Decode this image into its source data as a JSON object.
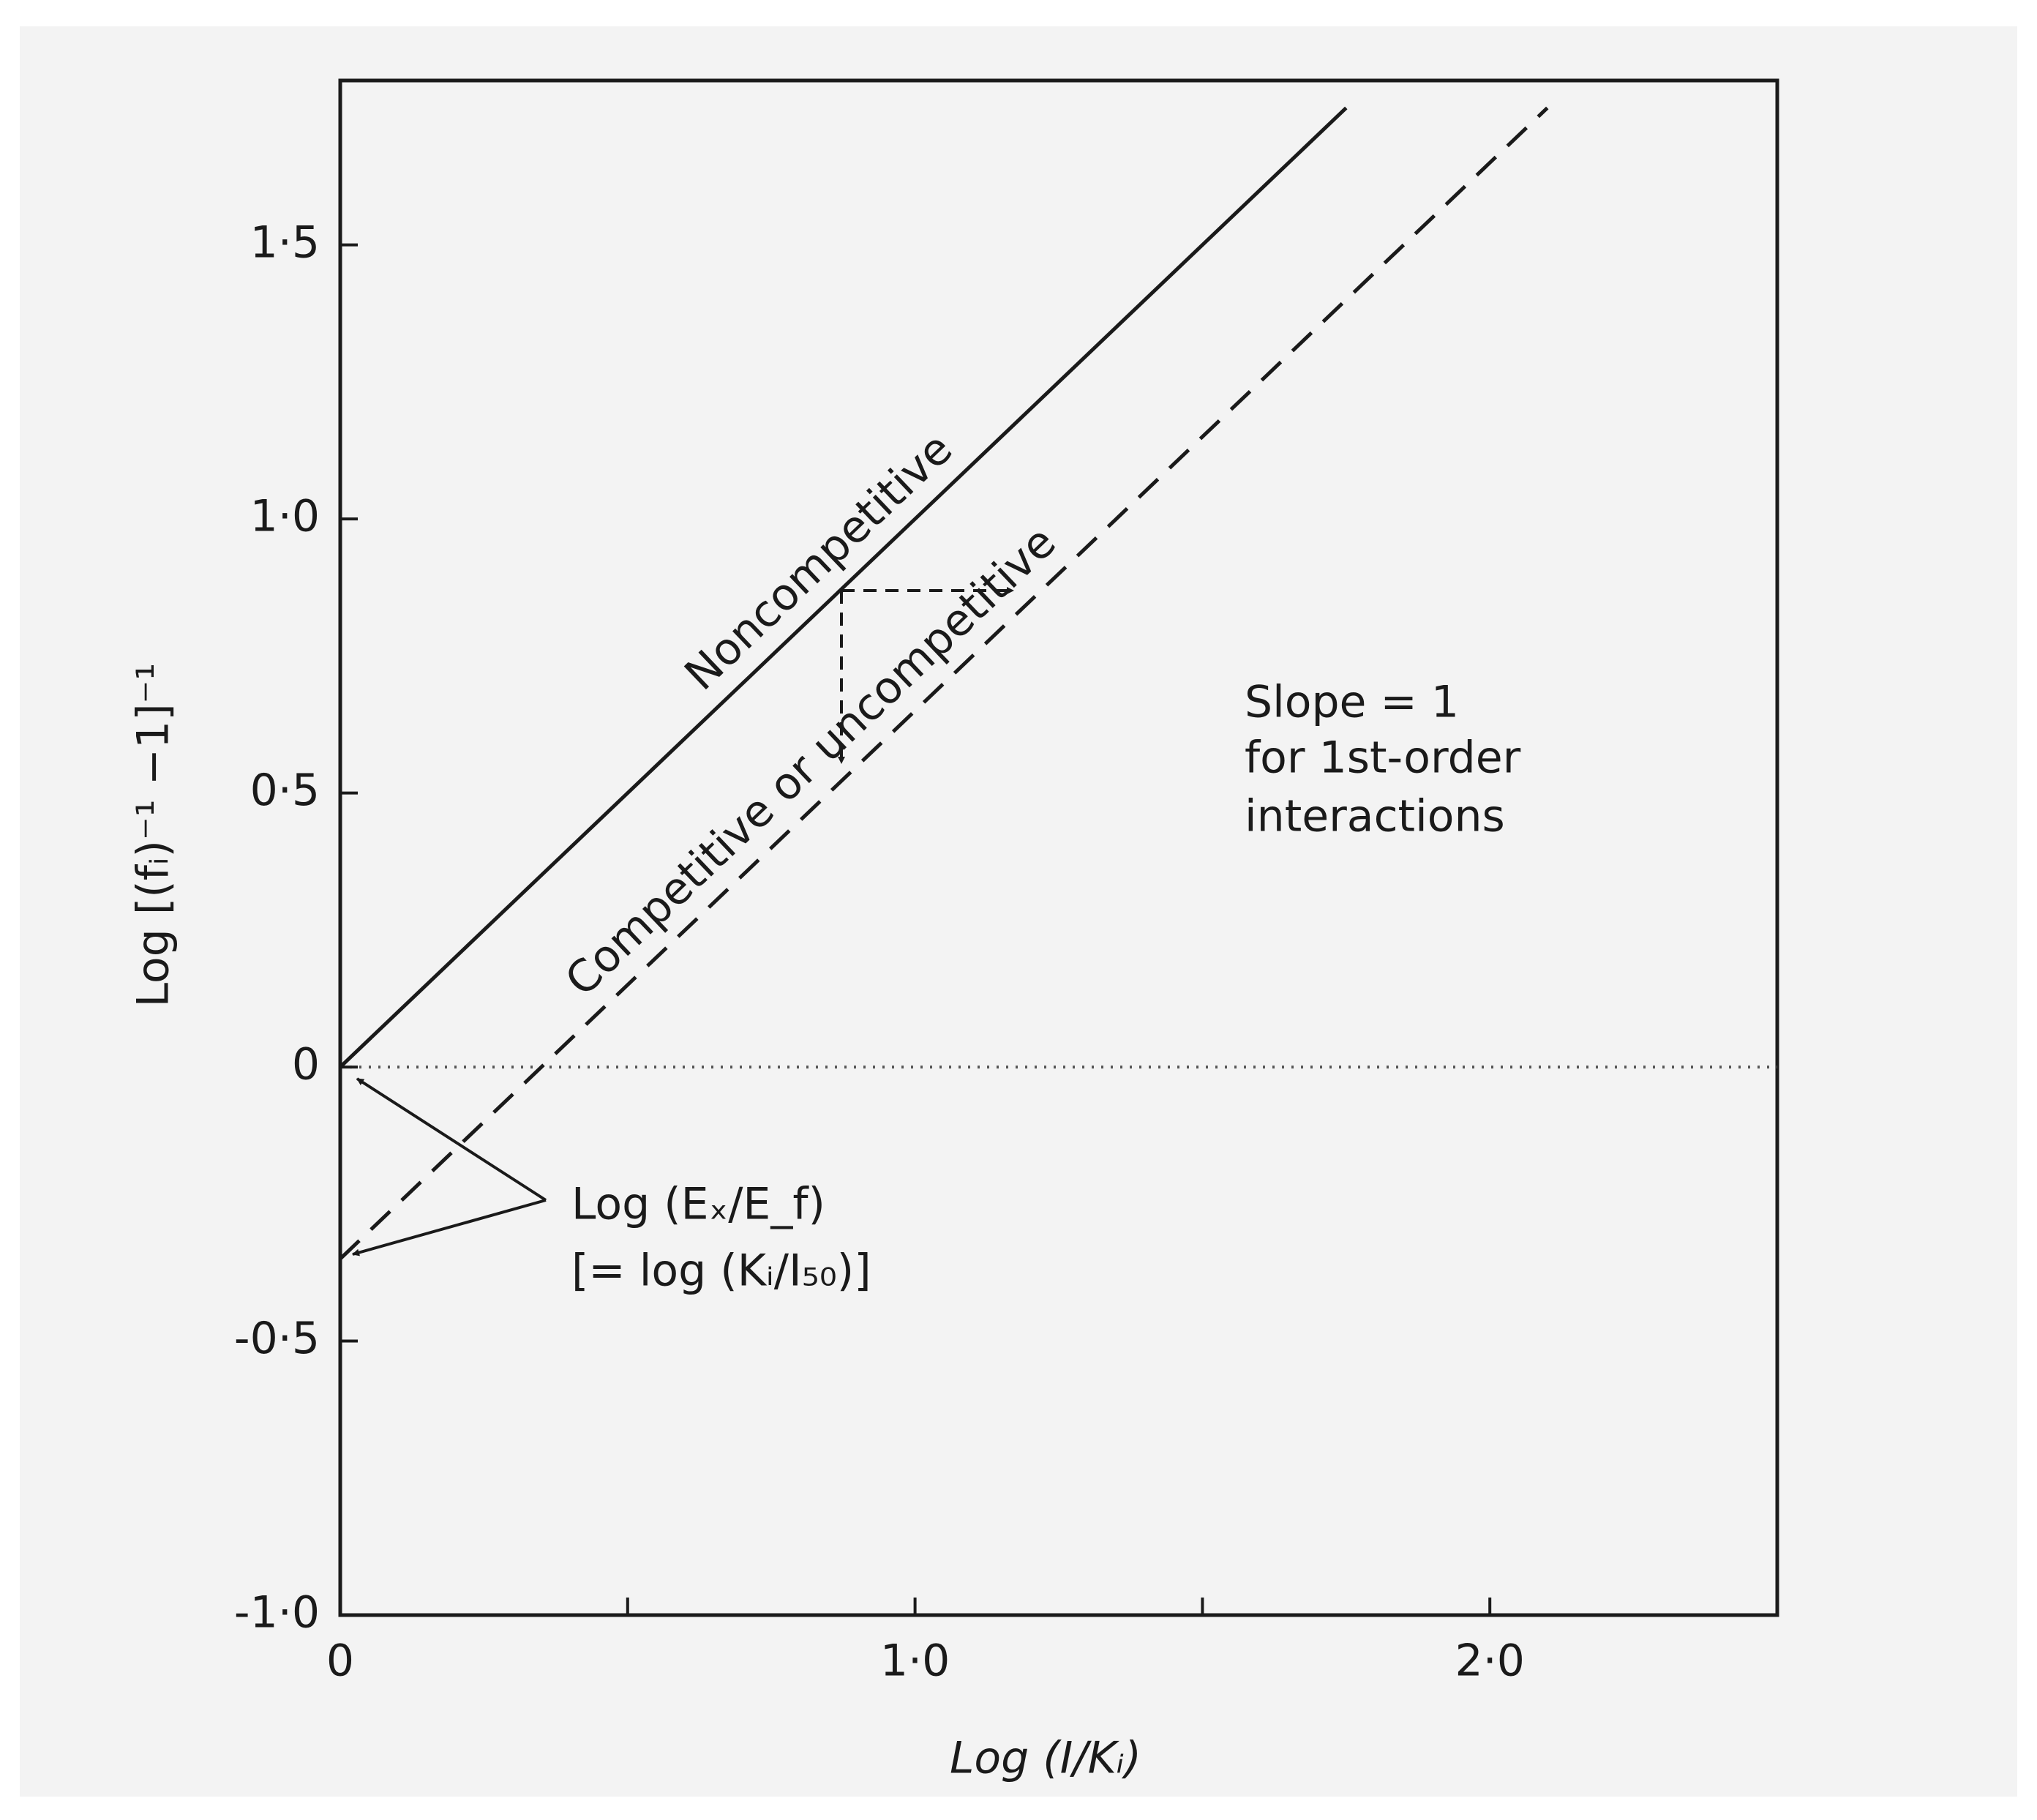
{
  "chart_data": {
    "type": "line",
    "xlabel": "Log (I/Kᵢ)",
    "ylabel": "Log [(fᵢ)⁻¹ −1]⁻¹",
    "xlim": [
      0,
      2.5
    ],
    "ylim": [
      -1.0,
      1.8
    ],
    "xticks": [
      0,
      {
        "value": 1.0,
        "label": "1·0"
      },
      {
        "value": 2.0,
        "label": "2·0"
      }
    ],
    "xminorticks": [
      0.5,
      1.5
    ],
    "yticks": [
      {
        "value": -1.0,
        "label": "-1·0"
      },
      {
        "value": -0.5,
        "label": "-0·5"
      },
      0,
      {
        "value": 0.5,
        "label": "0·5"
      },
      {
        "value": 1.0,
        "label": "1·0"
      },
      {
        "value": 1.5,
        "label": "1·5"
      }
    ],
    "hline": 0,
    "series": [
      {
        "name": "Noncompetitive",
        "color": "#1a1a1a",
        "style": "solid",
        "x": [
          0,
          1.75
        ],
        "values": [
          0,
          1.75
        ]
      },
      {
        "name": "Competitive or uncompetitive",
        "color": "#1a1a1a",
        "style": "dashed",
        "x": [
          0,
          2.1
        ],
        "values": [
          -0.35,
          1.75
        ]
      }
    ],
    "annotations": {
      "slope": [
        "Slope = 1",
        "for 1st-order",
        "interactions"
      ],
      "intercept": [
        "Log (Eₓ/E_f)",
        "[= log (Kᵢ/I₅₀)]"
      ]
    }
  }
}
